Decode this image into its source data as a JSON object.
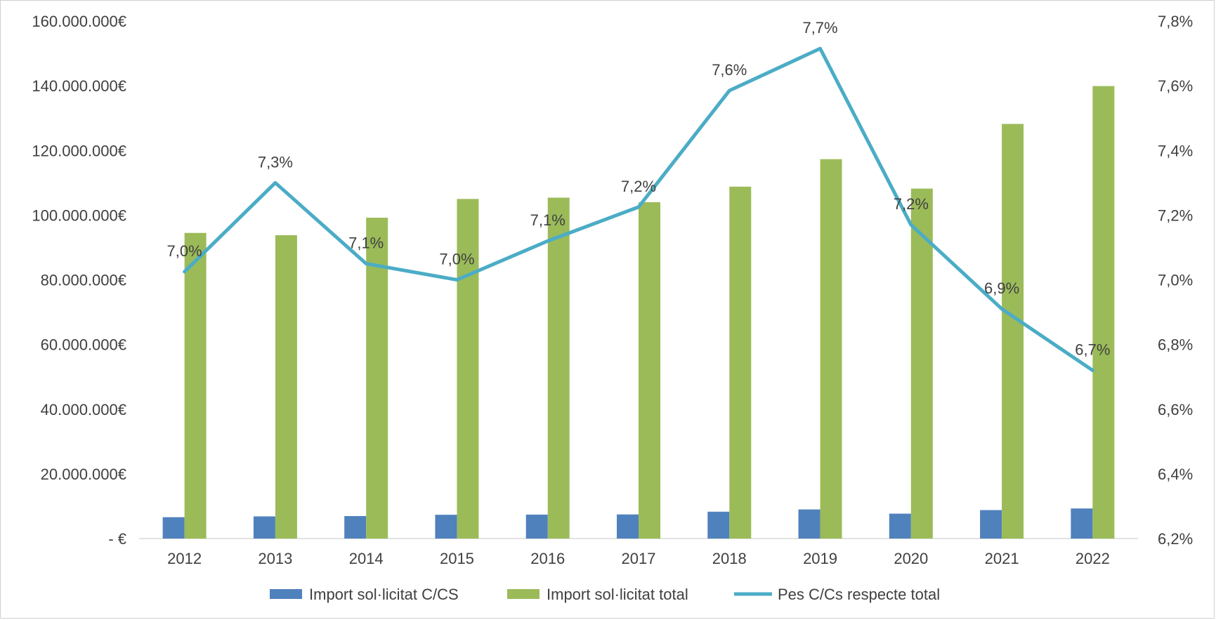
{
  "chart_data": {
    "type": "bar",
    "categories": [
      "2012",
      "2013",
      "2014",
      "2015",
      "2016",
      "2017",
      "2018",
      "2019",
      "2020",
      "2021",
      "2022"
    ],
    "series": [
      {
        "name": "Import sol·licitat C/CS",
        "type": "bar",
        "axis": "left",
        "color": "#4F81BD",
        "values": [
          6600000,
          6850000,
          6950000,
          7350000,
          7400000,
          7450000,
          8300000,
          9000000,
          7700000,
          8800000,
          9300000
        ]
      },
      {
        "name": "Import sol·licitat total",
        "type": "bar",
        "axis": "left",
        "color": "#9BBB59",
        "values": [
          94500000,
          93800000,
          99200000,
          105000000,
          105400000,
          104000000,
          108800000,
          117300000,
          108200000,
          128200000,
          139900000
        ]
      },
      {
        "name": "Pes C/Cs respecte total",
        "type": "line",
        "axis": "right",
        "color": "#4BACC6",
        "values": [
          7.025,
          7.3,
          7.05,
          7.0,
          7.12,
          7.225,
          7.585,
          7.715,
          7.17,
          6.91,
          6.72
        ],
        "data_labels": [
          "7,0%",
          "7,3%",
          "7,1%",
          "7,0%",
          "7,1%",
          "7,2%",
          "7,6%",
          "7,7%",
          "7,2%",
          "6,9%",
          "6,7%"
        ]
      }
    ],
    "left_axis": {
      "ylim": [
        0,
        160000000
      ],
      "ticks": [
        0,
        20000000,
        40000000,
        60000000,
        80000000,
        100000000,
        120000000,
        140000000,
        160000000
      ],
      "tick_labels": [
        "-   €",
        "20.000.000€",
        "40.000.000€",
        "60.000.000€",
        "80.000.000€",
        "100.000.000€",
        "120.000.000€",
        "140.000.000€",
        "160.000.000€"
      ]
    },
    "right_axis": {
      "ylim": [
        6.2,
        7.8
      ],
      "ticks": [
        6.2,
        6.4,
        6.6,
        6.8,
        7.0,
        7.2,
        7.4,
        7.6,
        7.8
      ],
      "tick_labels": [
        "6,2%",
        "6,4%",
        "6,6%",
        "6,8%",
        "7,0%",
        "7,2%",
        "7,4%",
        "7,6%",
        "7,8%"
      ]
    },
    "grid": false,
    "legend_position": "bottom"
  }
}
